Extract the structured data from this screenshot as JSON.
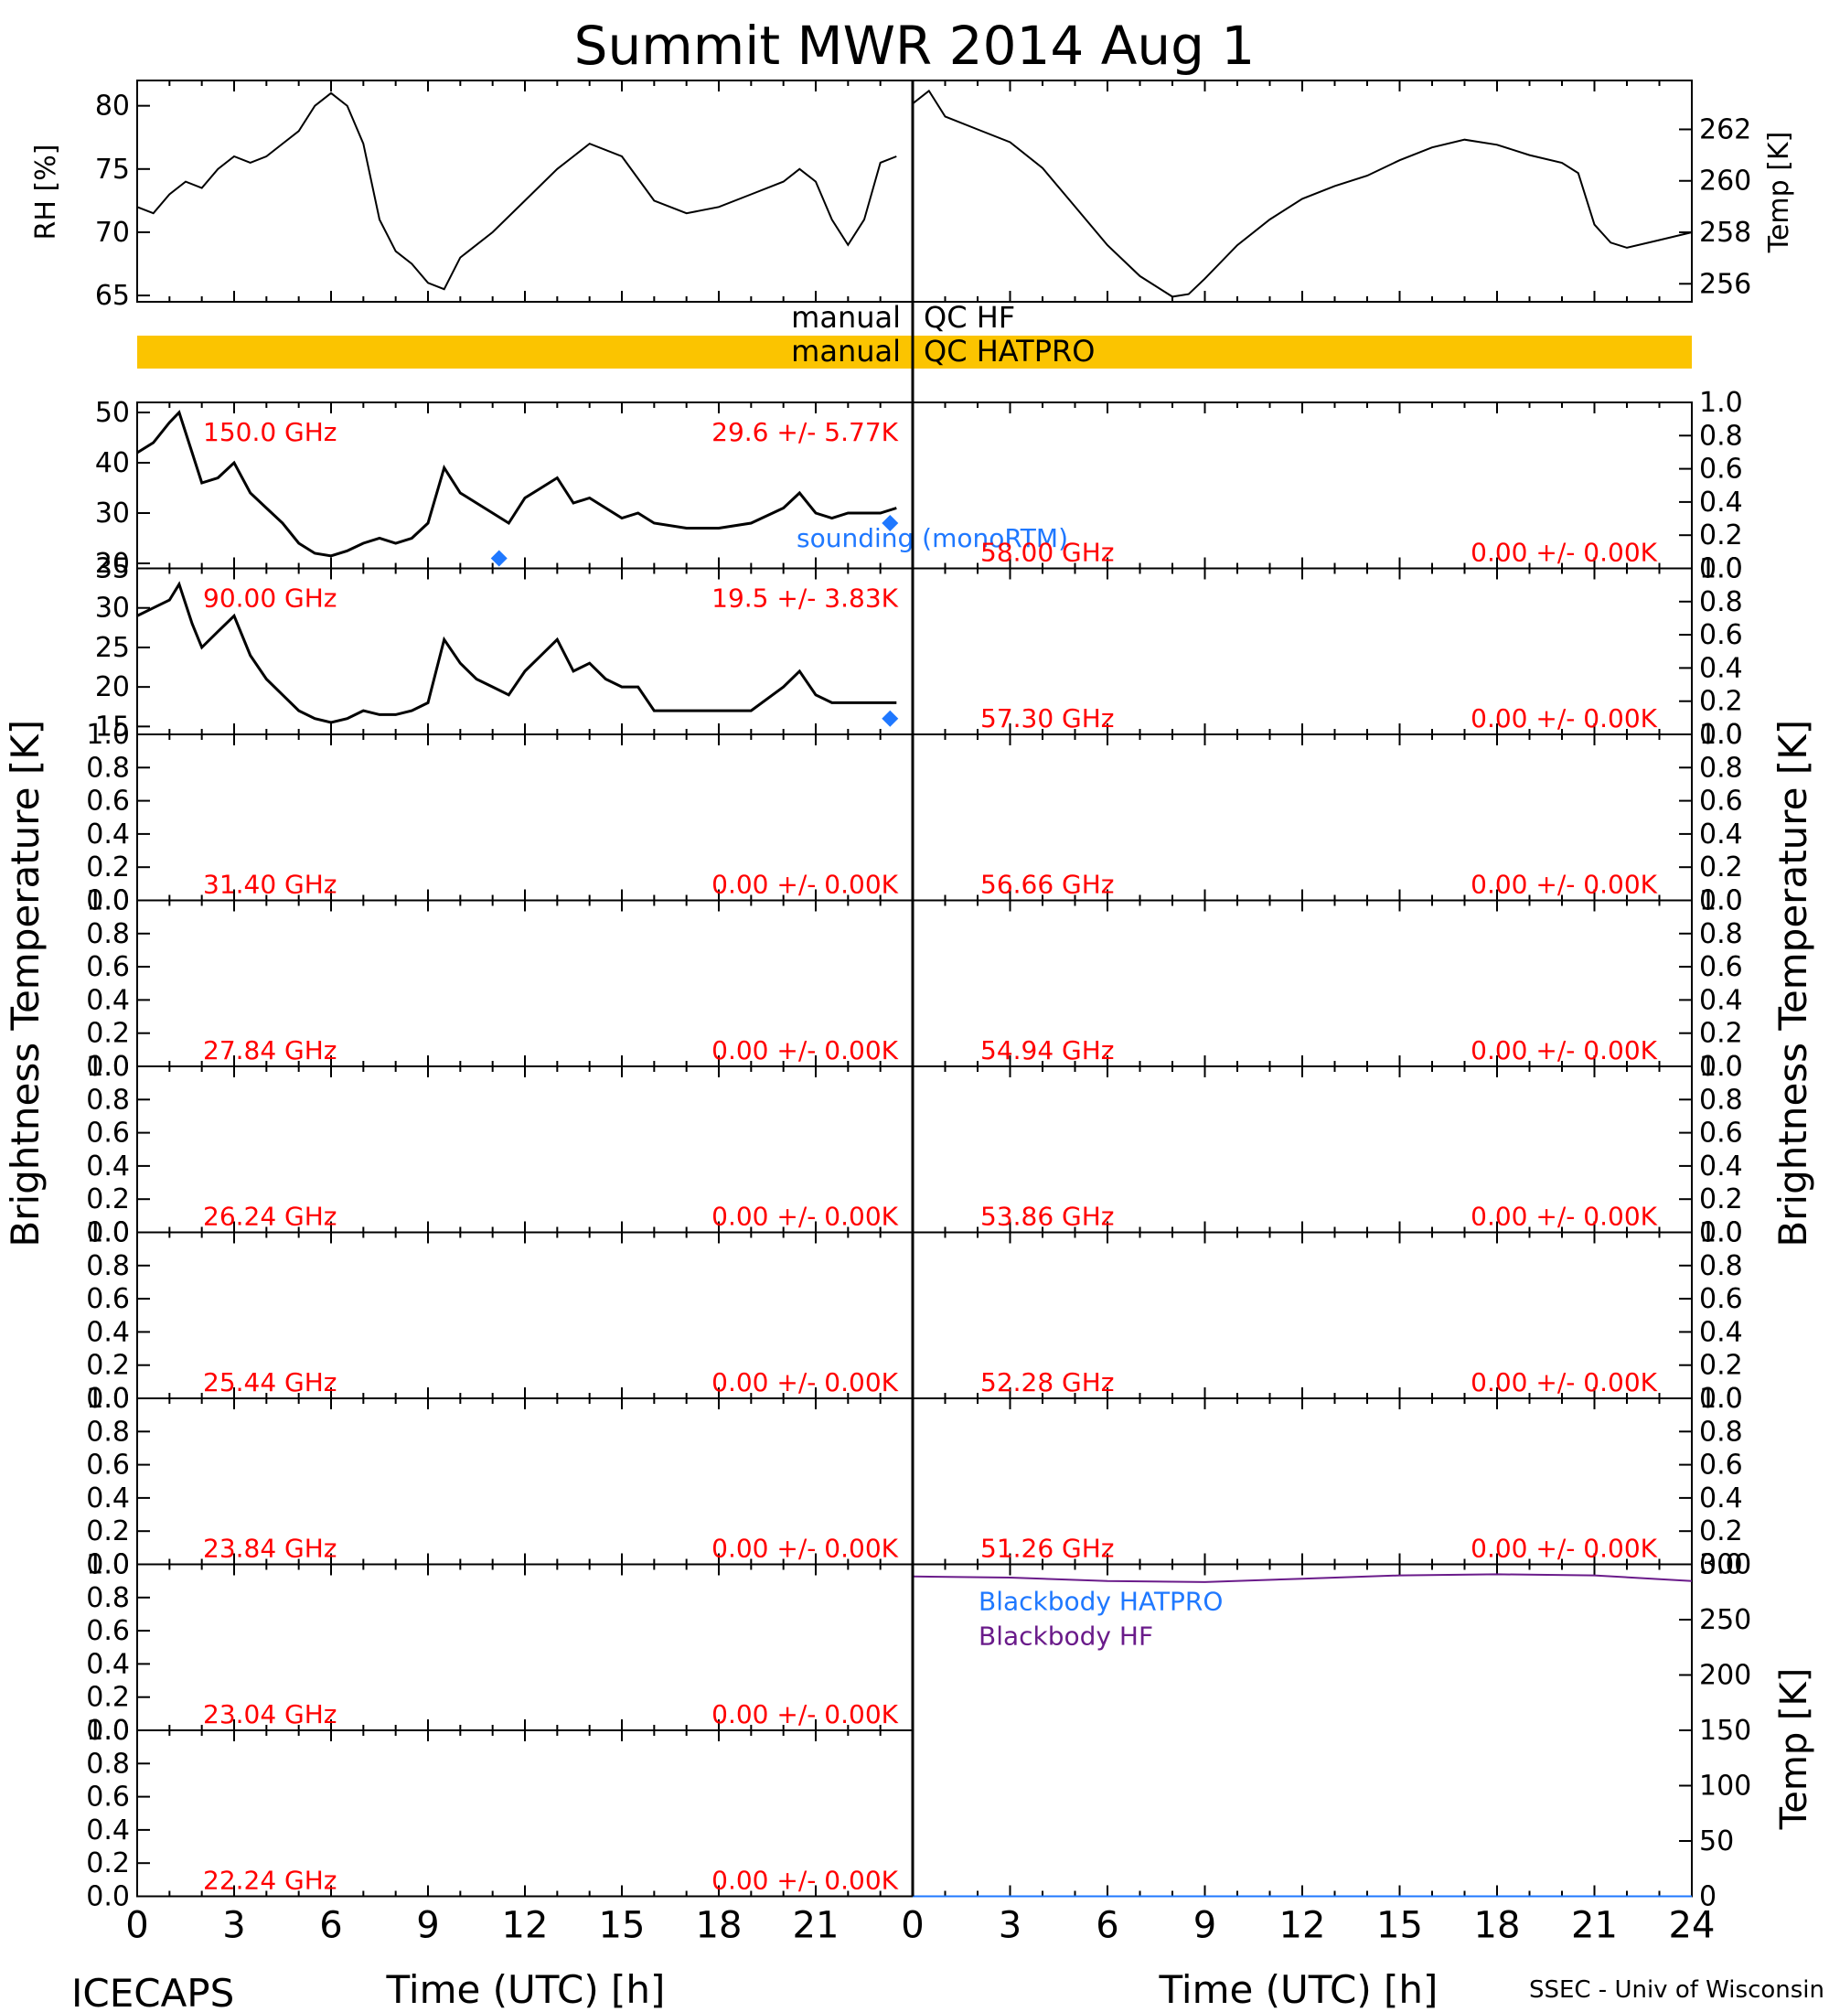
{
  "title": "Summit MWR 2014 Aug  1",
  "footer": {
    "left": "ICECAPS",
    "right": "SSEC - Univ of Wisconsin"
  },
  "axes": {
    "x_label": "Time (UTC) [h]",
    "x_ticks": [
      0,
      3,
      6,
      9,
      12,
      15,
      18,
      21
    ],
    "x_ticks_right": [
      0,
      3,
      6,
      9,
      12,
      15,
      18,
      21,
      24
    ],
    "x_range": [
      0,
      24
    ],
    "bt_label": "Brightness Temperature [K]",
    "unit_ticks": [
      "0.0",
      "0.2",
      "0.4",
      "0.6",
      "0.8",
      "1.0"
    ]
  },
  "qc": {
    "hf_label": "manual QC HF",
    "hatpro_label": "manual QC HATPRO",
    "hatpro_color": "#fbc400"
  },
  "colors": {
    "trace": "#000000",
    "label": "#ff0000",
    "sounding": "#1f78ff",
    "blackbody_hatpro": "#1f78ff",
    "blackbody_hf": "#6a1b8a"
  },
  "chart_data": [
    {
      "type": "line",
      "panel": "rh",
      "ylabel": "RH [%]",
      "ylim": [
        64.5,
        82
      ],
      "yticks": [
        65,
        70,
        75,
        80
      ],
      "x": [
        0,
        0.5,
        1,
        1.5,
        2,
        2.5,
        3,
        3.5,
        4,
        4.5,
        5,
        5.5,
        6,
        6.5,
        7,
        7.5,
        8,
        8.5,
        9,
        9.5,
        10,
        11,
        12,
        13,
        13.5,
        14,
        15,
        16,
        17,
        18,
        19,
        20,
        20.5,
        21,
        21.5,
        22,
        22.5,
        23,
        23.5
      ],
      "values": [
        72,
        71.5,
        73,
        74,
        73.5,
        75,
        76,
        75.5,
        76,
        77,
        78,
        80,
        81,
        80,
        77,
        71,
        68.5,
        67.5,
        66,
        65.5,
        68,
        70,
        72.5,
        75,
        76,
        77,
        76,
        72.5,
        71.5,
        72,
        73,
        74,
        75,
        74,
        71,
        69,
        71,
        75.5,
        76
      ]
    },
    {
      "type": "line",
      "panel": "temp",
      "ylabel": "Temp [K]",
      "ylim": [
        255.3,
        263.9
      ],
      "yticks": [
        256,
        258,
        260,
        262
      ],
      "x": [
        0,
        0.5,
        1,
        2,
        3,
        4,
        5,
        6,
        7,
        8,
        8.5,
        9,
        10,
        11,
        12,
        13,
        14,
        15,
        16,
        17,
        18,
        19,
        20,
        20.5,
        21,
        21.5,
        22,
        23,
        24
      ],
      "values": [
        263,
        263.5,
        262.5,
        262,
        261.5,
        260.5,
        259,
        257.5,
        256.3,
        255.5,
        255.6,
        256.2,
        257.5,
        258.5,
        259.3,
        259.8,
        260.2,
        260.8,
        261.3,
        261.6,
        261.4,
        261,
        260.7,
        260.3,
        258.3,
        257.6,
        257.4,
        257.7,
        258
      ]
    },
    {
      "type": "line",
      "panel": "bt-150",
      "ylim": [
        19,
        52
      ],
      "yticks": [
        20,
        30,
        40,
        50
      ],
      "freq_label": "150.0 GHz",
      "stat_label": "29.6 +/-  5.77K",
      "legend": "sounding (monoRTM)",
      "x": [
        0,
        0.5,
        1,
        1.3,
        1.7,
        2,
        2.5,
        3,
        3.5,
        4,
        4.5,
        5,
        5.5,
        6,
        6.5,
        7,
        7.5,
        8,
        8.5,
        9,
        9.5,
        10,
        10.5,
        11,
        11.5,
        12,
        12.5,
        13,
        13.5,
        14,
        14.5,
        15,
        15.5,
        16,
        17,
        18,
        19,
        20,
        20.5,
        21,
        21.5,
        22,
        23,
        23.5
      ],
      "values": [
        42,
        44,
        48,
        50,
        42,
        36,
        37,
        40,
        34,
        31,
        28,
        24,
        22,
        21.5,
        22.5,
        24,
        25,
        24,
        25,
        28,
        39,
        34,
        32,
        30,
        28,
        33,
        35,
        37,
        32,
        33,
        31,
        29,
        30,
        28,
        27,
        27,
        28,
        31,
        34,
        30,
        29,
        30,
        30,
        31
      ],
      "sounding": [
        {
          "x": 11.2,
          "value": 21
        },
        {
          "x": 23.3,
          "value": 28
        }
      ]
    },
    {
      "type": "line",
      "panel": "bt-90",
      "ylim": [
        14,
        35
      ],
      "yticks": [
        15,
        20,
        25,
        30,
        35
      ],
      "freq_label": "90.00 GHz",
      "stat_label": "19.5 +/-  3.83K",
      "x": [
        0,
        0.5,
        1,
        1.3,
        1.7,
        2,
        2.5,
        3,
        3.5,
        4,
        4.5,
        5,
        5.5,
        6,
        6.5,
        7,
        7.5,
        8,
        8.5,
        9,
        9.5,
        10,
        10.5,
        11,
        11.5,
        12,
        12.5,
        13,
        13.5,
        14,
        14.5,
        15,
        15.5,
        16,
        17,
        18,
        19,
        20,
        20.5,
        21,
        21.5,
        22,
        23,
        23.5
      ],
      "values": [
        29,
        30,
        31,
        33,
        28,
        25,
        27,
        29,
        24,
        21,
        19,
        17,
        16,
        15.5,
        16,
        17,
        16.5,
        16.5,
        17,
        18,
        26,
        23,
        21,
        20,
        19,
        22,
        24,
        26,
        22,
        23,
        21,
        20,
        20,
        17,
        17,
        17,
        17,
        20,
        22,
        19,
        18,
        18,
        18,
        18
      ],
      "sounding": [
        {
          "x": 23.3,
          "value": 16
        }
      ]
    }
  ],
  "empty_panels": {
    "left": [
      {
        "freq_label": "31.40 GHz",
        "stat_label": "0.00 +/-  0.00K"
      },
      {
        "freq_label": "27.84 GHz",
        "stat_label": "0.00 +/-  0.00K"
      },
      {
        "freq_label": "26.24 GHz",
        "stat_label": "0.00 +/-  0.00K"
      },
      {
        "freq_label": "25.44 GHz",
        "stat_label": "0.00 +/-  0.00K"
      },
      {
        "freq_label": "23.84 GHz",
        "stat_label": "0.00 +/-  0.00K"
      },
      {
        "freq_label": "23.04 GHz",
        "stat_label": "0.00 +/-  0.00K"
      },
      {
        "freq_label": "22.24 GHz",
        "stat_label": "0.00 +/-  0.00K"
      }
    ],
    "right": [
      {
        "freq_label": "58.00 GHz",
        "stat_label": "0.00 +/-  0.00K"
      },
      {
        "freq_label": "57.30 GHz",
        "stat_label": "0.00 +/-  0.00K"
      },
      {
        "freq_label": "56.66 GHz",
        "stat_label": "0.00 +/-  0.00K"
      },
      {
        "freq_label": "54.94 GHz",
        "stat_label": "0.00 +/-  0.00K"
      },
      {
        "freq_label": "53.86 GHz",
        "stat_label": "0.00 +/-  0.00K"
      },
      {
        "freq_label": "52.28 GHz",
        "stat_label": "0.00 +/-  0.00K"
      },
      {
        "freq_label": "51.26 GHz",
        "stat_label": "0.00 +/-  0.00K"
      }
    ]
  },
  "blackbody": {
    "ylabel": "Temp [K]",
    "ylim": [
      0,
      300
    ],
    "yticks": [
      0,
      50,
      100,
      150,
      200,
      250,
      300
    ],
    "legend_hatpro": "Blackbody HATPRO",
    "legend_hf": "Blackbody HF",
    "x": [
      0,
      3,
      6,
      9,
      12,
      15,
      18,
      21,
      24
    ],
    "hf_values": [
      289,
      288,
      285,
      284,
      287,
      290,
      291,
      290,
      285
    ],
    "hatpro_values": [
      0,
      0,
      0,
      0,
      0,
      0,
      0,
      0,
      0
    ]
  }
}
